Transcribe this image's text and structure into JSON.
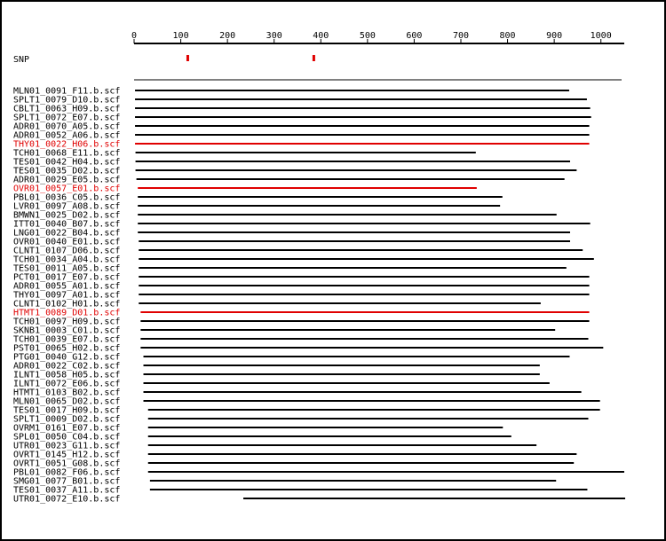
{
  "colors": {
    "normal": "#000000",
    "highlight": "#e00000",
    "snp": "#e00000"
  },
  "snp_label": "SNP",
  "axis": {
    "min": 0,
    "max": 1050,
    "ticks": [
      0,
      100,
      200,
      300,
      400,
      500,
      600,
      700,
      800,
      900,
      1000
    ],
    "tick_labels": [
      "0",
      "100",
      "200",
      "300",
      "400",
      "500",
      "600",
      "700",
      "800",
      "900",
      "1000"
    ]
  },
  "snps": [
    115,
    385
  ],
  "reads": [
    {
      "name": "MLN01_0091_F11.b.scf",
      "start": 2,
      "end": 932,
      "highlight": false
    },
    {
      "name": "SPLT1_0079_D10.b.scf",
      "start": 2,
      "end": 970,
      "highlight": false
    },
    {
      "name": "CBLT1_0063_H09.b.scf",
      "start": 2,
      "end": 977,
      "highlight": false
    },
    {
      "name": "SPLT1_0072_E07.b.scf",
      "start": 2,
      "end": 979,
      "highlight": false
    },
    {
      "name": "ADR01_0070_A05.b.scf",
      "start": 2,
      "end": 975,
      "highlight": false
    },
    {
      "name": "ADR01_0052_A06.b.scf",
      "start": 2,
      "end": 975,
      "highlight": false
    },
    {
      "name": "THY01_0022_H06.b.scf",
      "start": 2,
      "end": 975,
      "highlight": true
    },
    {
      "name": "TCH01_0068_E11.b.scf",
      "start": 3,
      "end": 732,
      "highlight": false
    },
    {
      "name": "TES01_0042_H04.b.scf",
      "start": 3,
      "end": 934,
      "highlight": false
    },
    {
      "name": "TES01_0035_D02.b.scf",
      "start": 3,
      "end": 948,
      "highlight": false
    },
    {
      "name": "ADR01_0029_E05.b.scf",
      "start": 5,
      "end": 922,
      "highlight": false
    },
    {
      "name": "OVR01_0057_E01.b.scf",
      "start": 8,
      "end": 734,
      "highlight": true
    },
    {
      "name": "PBL01_0036_C05.b.scf",
      "start": 8,
      "end": 789,
      "highlight": false
    },
    {
      "name": "LVR01_0097_A08.b.scf",
      "start": 8,
      "end": 784,
      "highlight": false
    },
    {
      "name": "BMWN1_0025_D02.b.scf",
      "start": 8,
      "end": 905,
      "highlight": false
    },
    {
      "name": "ITT01_0040_B07.b.scf",
      "start": 8,
      "end": 977,
      "highlight": false
    },
    {
      "name": "LNG01_0022_B04.b.scf",
      "start": 8,
      "end": 934,
      "highlight": false
    },
    {
      "name": "OVR01_0040_E01.b.scf",
      "start": 10,
      "end": 934,
      "highlight": false
    },
    {
      "name": "CLNT1_0107_D06.b.scf",
      "start": 10,
      "end": 961,
      "highlight": false
    },
    {
      "name": "TCH01_0034_A04.b.scf",
      "start": 10,
      "end": 985,
      "highlight": false
    },
    {
      "name": "TES01_0011_A05.b.scf",
      "start": 10,
      "end": 926,
      "highlight": false
    },
    {
      "name": "PCT01_0017_E07.b.scf",
      "start": 10,
      "end": 975,
      "highlight": false
    },
    {
      "name": "ADR01_0055_A01.b.scf",
      "start": 10,
      "end": 975,
      "highlight": false
    },
    {
      "name": "THY01_0097_A01.b.scf",
      "start": 10,
      "end": 975,
      "highlight": false
    },
    {
      "name": "CLNT1_0102_H01.b.scf",
      "start": 10,
      "end": 871,
      "highlight": false
    },
    {
      "name": "HTMT1_0089_D01.b.scf",
      "start": 14,
      "end": 975,
      "highlight": true
    },
    {
      "name": "TCH01_0097_H09.b.scf",
      "start": 14,
      "end": 975,
      "highlight": false
    },
    {
      "name": "SKNB1_0003_C01.b.scf",
      "start": 14,
      "end": 902,
      "highlight": false
    },
    {
      "name": "TCH01_0039_E07.b.scf",
      "start": 14,
      "end": 973,
      "highlight": false
    },
    {
      "name": "PST01_0065_H02.b.scf",
      "start": 14,
      "end": 1005,
      "highlight": false
    },
    {
      "name": "PTG01_0040_G12.b.scf",
      "start": 20,
      "end": 933,
      "highlight": false
    },
    {
      "name": "ADR01_0022_C02.b.scf",
      "start": 20,
      "end": 869,
      "highlight": false
    },
    {
      "name": "ILNT1_0058_H05.b.scf",
      "start": 20,
      "end": 869,
      "highlight": false
    },
    {
      "name": "ILNT1_0072_E06.b.scf",
      "start": 20,
      "end": 890,
      "highlight": false
    },
    {
      "name": "HTMT1_0103_B02.b.scf",
      "start": 20,
      "end": 958,
      "highlight": false
    },
    {
      "name": "MLN01_0065_D02.b.scf",
      "start": 20,
      "end": 998,
      "highlight": false
    },
    {
      "name": "TES01_0017_H09.b.scf",
      "start": 30,
      "end": 998,
      "highlight": false
    },
    {
      "name": "SPLT1_0009_D02.b.scf",
      "start": 30,
      "end": 973,
      "highlight": false
    },
    {
      "name": "OVRM1_0161_E07.b.scf",
      "start": 30,
      "end": 790,
      "highlight": false
    },
    {
      "name": "SPL01_0050_C04.b.scf",
      "start": 30,
      "end": 808,
      "highlight": false
    },
    {
      "name": "UTR01_0023_G11.b.scf",
      "start": 30,
      "end": 862,
      "highlight": false
    },
    {
      "name": "OVRT1_0145_H12.b.scf",
      "start": 30,
      "end": 948,
      "highlight": false
    },
    {
      "name": "OVRT1_0051_G08.b.scf",
      "start": 30,
      "end": 942,
      "highlight": false
    },
    {
      "name": "PBL01_0082_F06.b.scf",
      "start": 30,
      "end": 1050,
      "highlight": false
    },
    {
      "name": "SMG01_0077_B01.b.scf",
      "start": 34,
      "end": 904,
      "highlight": false
    },
    {
      "name": "TES01_0037_A11.b.scf",
      "start": 34,
      "end": 971,
      "highlight": false
    },
    {
      "name": "UTR01_0072_E10.b.scf",
      "start": 234,
      "end": 1052,
      "highlight": false
    }
  ]
}
